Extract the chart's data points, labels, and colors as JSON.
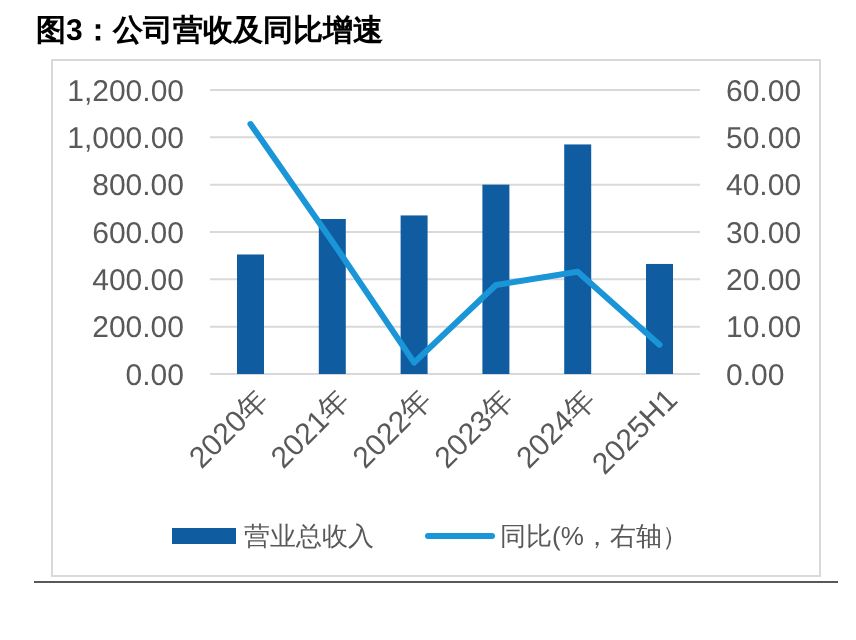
{
  "chart_data": {
    "type": "bar",
    "title": "图3：公司营收及同比增速",
    "categories": [
      "2020年",
      "2021年",
      "2022年",
      "2023年",
      "2024年",
      "2025H1"
    ],
    "series": [
      {
        "name": "营业总收入",
        "color": "#0f5ca0",
        "values": [
          505,
          655,
          670,
          800,
          970,
          465
        ]
      },
      {
        "name": "同比(%，右轴）",
        "type": "line",
        "axis": "y2",
        "color": "#1a96d8",
        "values": [
          52.8,
          28,
          2.4,
          18.8,
          21.6,
          6.2
        ]
      }
    ],
    "ylim": [
      0,
      1200
    ],
    "yticks": [
      {
        "value": 0,
        "label": "0.00"
      },
      {
        "value": 200,
        "label": "200.00"
      },
      {
        "value": 400,
        "label": "400.00"
      },
      {
        "value": 600,
        "label": "600.00"
      },
      {
        "value": 800,
        "label": "800.00"
      },
      {
        "value": 1000,
        "label": "1,000.00"
      },
      {
        "value": 1200,
        "label": "1,200.00"
      }
    ],
    "y2lim": [
      0,
      60
    ],
    "y2ticks": [
      {
        "value": 0,
        "label": "0.00"
      },
      {
        "value": 10,
        "label": "10.00"
      },
      {
        "value": 20,
        "label": "20.00"
      },
      {
        "value": 30,
        "label": "30.00"
      },
      {
        "value": 40,
        "label": "40.00"
      },
      {
        "value": 50,
        "label": "50.00"
      },
      {
        "value": 60,
        "label": "60.00"
      }
    ],
    "grid": "y",
    "legend": "bottom",
    "line_style": "solid",
    "marker": "none"
  }
}
